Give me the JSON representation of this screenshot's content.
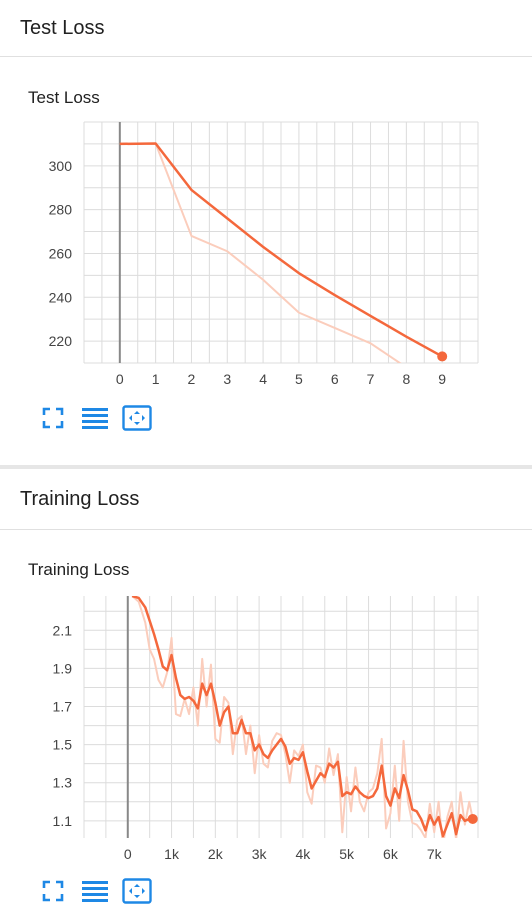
{
  "sections": [
    {
      "header": "Test Loss"
    },
    {
      "header": "Training Loss"
    }
  ],
  "colors": {
    "series": "#f4683c",
    "smoothed_faint": "#fbcdbc",
    "grid": "#dcdcdc",
    "axis": "#888888",
    "tool": "#1e88e5"
  },
  "tools": [
    "fit-to-data-icon",
    "toggle-log-scale-icon",
    "expand-chart-icon"
  ],
  "chart_data": [
    {
      "type": "line",
      "title": "Test Loss",
      "xlabel": "",
      "ylabel": "",
      "xlim": [
        -1,
        10
      ],
      "ylim": [
        210,
        320
      ],
      "xticks": [
        0,
        1,
        2,
        3,
        4,
        5,
        6,
        7,
        8,
        9
      ],
      "xtick_labels": [
        "0",
        "1",
        "2",
        "3",
        "4",
        "5",
        "6",
        "7",
        "8",
        "9"
      ],
      "yticks": [
        220,
        240,
        260,
        280,
        300
      ],
      "ytick_labels": [
        "220",
        "240",
        "260",
        "280",
        "300"
      ],
      "series": [
        {
          "role": "smoothed",
          "x": [
            0,
            1,
            2,
            3,
            4,
            5,
            6,
            7,
            8,
            9
          ],
          "y": [
            310,
            310.2,
            289,
            276,
            263,
            251,
            241,
            231.5,
            222,
            213
          ]
        },
        {
          "role": "raw",
          "x": [
            0,
            1,
            2,
            3,
            4,
            5,
            6,
            7,
            8,
            9
          ],
          "y": [
            310,
            310.2,
            268,
            261,
            248,
            233,
            226,
            219,
            208,
            203
          ]
        }
      ],
      "grid": true
    },
    {
      "type": "line",
      "title": "Training Loss",
      "xlabel": "",
      "ylabel": "",
      "xlim": [
        -1000,
        8000
      ],
      "ylim": [
        1.01,
        2.28
      ],
      "xticks": [
        0,
        1000,
        2000,
        3000,
        4000,
        5000,
        6000,
        7000
      ],
      "xtick_labels": [
        "0",
        "1k",
        "2k",
        "3k",
        "4k",
        "5k",
        "6k",
        "7k"
      ],
      "yticks": [
        1.1,
        1.3,
        1.5,
        1.7,
        1.9,
        2.1
      ],
      "ytick_labels": [
        "1.1",
        "1.3",
        "1.5",
        "1.7",
        "1.9",
        "2.1"
      ],
      "series": [
        {
          "role": "smoothed",
          "x": [
            100,
            250,
            400,
            500,
            600,
            700,
            800,
            900,
            1000,
            1100,
            1200,
            1300,
            1400,
            1500,
            1600,
            1700,
            1800,
            1900,
            2000,
            2100,
            2200,
            2300,
            2400,
            2500,
            2600,
            2700,
            2800,
            2900,
            3000,
            3100,
            3200,
            3300,
            3400,
            3500,
            3600,
            3700,
            3800,
            3900,
            4000,
            4100,
            4200,
            4300,
            4400,
            4500,
            4600,
            4700,
            4800,
            4900,
            5000,
            5100,
            5200,
            5300,
            5400,
            5500,
            5600,
            5700,
            5800,
            5900,
            6000,
            6100,
            6200,
            6300,
            6400,
            6500,
            6600,
            6700,
            6800,
            6900,
            7000,
            7100,
            7200,
            7300,
            7400,
            7500,
            7600,
            7700,
            7800,
            7880
          ],
          "y": [
            2.28,
            2.27,
            2.22,
            2.15,
            2.08,
            2.0,
            1.91,
            1.89,
            1.97,
            1.85,
            1.76,
            1.74,
            1.75,
            1.73,
            1.69,
            1.82,
            1.76,
            1.82,
            1.72,
            1.6,
            1.67,
            1.7,
            1.56,
            1.56,
            1.63,
            1.56,
            1.56,
            1.47,
            1.5,
            1.45,
            1.43,
            1.47,
            1.5,
            1.53,
            1.49,
            1.4,
            1.43,
            1.42,
            1.46,
            1.36,
            1.27,
            1.31,
            1.35,
            1.33,
            1.4,
            1.38,
            1.41,
            1.23,
            1.25,
            1.24,
            1.28,
            1.25,
            1.23,
            1.22,
            1.23,
            1.27,
            1.39,
            1.23,
            1.18,
            1.27,
            1.22,
            1.34,
            1.26,
            1.16,
            1.15,
            1.11,
            1.05,
            1.13,
            1.08,
            1.12,
            1.02,
            1.08,
            1.14,
            1.03,
            1.13,
            1.1,
            1.11,
            1.11
          ]
        },
        {
          "role": "raw",
          "x": [
            100,
            250,
            400,
            500,
            600,
            700,
            800,
            900,
            1000,
            1100,
            1200,
            1300,
            1400,
            1500,
            1600,
            1700,
            1800,
            1900,
            2000,
            2100,
            2200,
            2300,
            2400,
            2500,
            2600,
            2700,
            2800,
            2900,
            3000,
            3100,
            3200,
            3300,
            3400,
            3500,
            3600,
            3700,
            3800,
            3900,
            4000,
            4100,
            4200,
            4300,
            4400,
            4500,
            4600,
            4700,
            4800,
            4900,
            5000,
            5100,
            5200,
            5300,
            5400,
            5500,
            5600,
            5700,
            5800,
            5900,
            6000,
            6100,
            6200,
            6300,
            6400,
            6500,
            6600,
            6700,
            6800,
            6900,
            7000,
            7100,
            7200,
            7300,
            7400,
            7500,
            7600,
            7700,
            7800,
            7880
          ],
          "y": [
            2.28,
            2.25,
            2.14,
            2.0,
            1.95,
            1.84,
            1.8,
            1.88,
            2.06,
            1.66,
            1.65,
            1.74,
            1.66,
            1.8,
            1.6,
            1.95,
            1.7,
            1.92,
            1.53,
            1.51,
            1.75,
            1.72,
            1.45,
            1.63,
            1.65,
            1.45,
            1.6,
            1.35,
            1.55,
            1.4,
            1.38,
            1.52,
            1.56,
            1.55,
            1.45,
            1.3,
            1.47,
            1.44,
            1.5,
            1.25,
            1.19,
            1.39,
            1.38,
            1.3,
            1.48,
            1.34,
            1.45,
            1.04,
            1.33,
            1.15,
            1.38,
            1.2,
            1.15,
            1.25,
            1.27,
            1.35,
            1.53,
            1.06,
            1.14,
            1.39,
            1.1,
            1.52,
            1.2,
            1.09,
            1.08,
            1.05,
            1.01,
            1.19,
            1.04,
            1.2,
            0.97,
            1.12,
            1.2,
            1.0,
            1.25,
            1.08,
            1.2,
            1.11
          ]
        }
      ],
      "grid": true
    }
  ]
}
